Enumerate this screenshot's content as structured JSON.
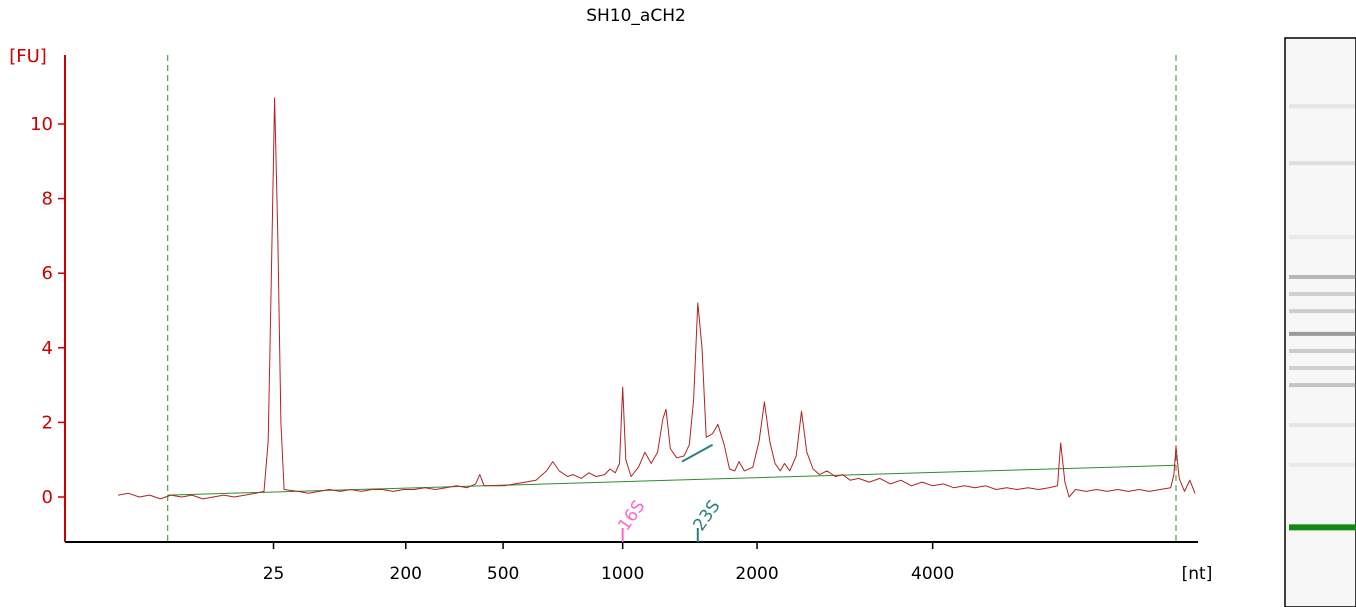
{
  "colors": {
    "axis_y": "#cc0000",
    "axis_x": "#000000",
    "trace": "#b22222",
    "baseline": "#2e8b2e",
    "boundary": "#2e8b2e",
    "marker_16s": "#ff66cc",
    "marker_23s": "#2f7f7f",
    "lane_band": "#777777",
    "lane_marker": "#138813"
  },
  "chart_data": {
    "type": "line",
    "title": "SH10_aCH2",
    "ylabel": "[FU]",
    "xlabel": "[nt]",
    "ylim": [
      -1.2,
      11.8
    ],
    "xlim": [
      0,
      100
    ],
    "yticks": [
      0,
      2,
      4,
      6,
      8,
      10
    ],
    "xticks": [
      {
        "label": "25",
        "x": 14.7
      },
      {
        "label": "200",
        "x": 27.2
      },
      {
        "label": "500",
        "x": 36.4
      },
      {
        "label": "1000",
        "x": 47.7
      },
      {
        "label": "2000",
        "x": 60.4
      },
      {
        "label": "4000",
        "x": 77.0
      }
    ],
    "boundaries": [
      4.7,
      100.0
    ],
    "baseline": [
      [
        4.7,
        0.05
      ],
      [
        100.0,
        0.85
      ]
    ],
    "markers": [
      {
        "label": "16S",
        "x": 47.7,
        "color_key": "marker_16s"
      },
      {
        "label": "23S",
        "x": 54.8,
        "color_key": "marker_23s"
      }
    ],
    "secondary_line": {
      "points": [
        [
          53.3,
          0.95
        ],
        [
          56.2,
          1.4
        ]
      ],
      "color_key": "marker_23s"
    },
    "series": [
      {
        "points": [
          [
            0.0,
            0.05
          ],
          [
            1.0,
            0.1
          ],
          [
            2.0,
            0.0
          ],
          [
            3.0,
            0.05
          ],
          [
            4.0,
            -0.05
          ],
          [
            5.0,
            0.05
          ],
          [
            6.0,
            0.0
          ],
          [
            7.0,
            0.05
          ],
          [
            8.0,
            -0.05
          ],
          [
            9.0,
            0.0
          ],
          [
            10.0,
            0.05
          ],
          [
            11.0,
            0.0
          ],
          [
            12.0,
            0.05
          ],
          [
            13.0,
            0.1
          ],
          [
            13.8,
            0.15
          ],
          [
            14.2,
            1.5
          ],
          [
            14.5,
            6.0
          ],
          [
            14.8,
            10.7
          ],
          [
            15.1,
            7.0
          ],
          [
            15.4,
            2.0
          ],
          [
            15.7,
            0.2
          ],
          [
            17.0,
            0.15
          ],
          [
            18.0,
            0.1
          ],
          [
            19.0,
            0.15
          ],
          [
            20.0,
            0.2
          ],
          [
            21.0,
            0.15
          ],
          [
            22.0,
            0.2
          ],
          [
            23.0,
            0.15
          ],
          [
            24.0,
            0.2
          ],
          [
            25.0,
            0.2
          ],
          [
            26.0,
            0.15
          ],
          [
            27.0,
            0.2
          ],
          [
            28.0,
            0.2
          ],
          [
            29.0,
            0.25
          ],
          [
            30.0,
            0.2
          ],
          [
            31.0,
            0.25
          ],
          [
            32.0,
            0.3
          ],
          [
            33.0,
            0.25
          ],
          [
            33.8,
            0.35
          ],
          [
            34.2,
            0.6
          ],
          [
            34.6,
            0.3
          ],
          [
            35.5,
            0.3
          ],
          [
            36.5,
            0.3
          ],
          [
            37.5,
            0.35
          ],
          [
            38.5,
            0.4
          ],
          [
            39.5,
            0.45
          ],
          [
            40.5,
            0.7
          ],
          [
            41.1,
            0.95
          ],
          [
            41.7,
            0.7
          ],
          [
            42.5,
            0.55
          ],
          [
            43.0,
            0.6
          ],
          [
            43.8,
            0.5
          ],
          [
            44.5,
            0.65
          ],
          [
            45.2,
            0.55
          ],
          [
            46.0,
            0.6
          ],
          [
            46.5,
            0.75
          ],
          [
            47.0,
            0.65
          ],
          [
            47.4,
            0.9
          ],
          [
            47.7,
            2.95
          ],
          [
            48.0,
            1.0
          ],
          [
            48.5,
            0.55
          ],
          [
            49.2,
            0.8
          ],
          [
            49.8,
            1.2
          ],
          [
            50.4,
            0.9
          ],
          [
            51.0,
            1.2
          ],
          [
            51.5,
            2.1
          ],
          [
            51.8,
            2.35
          ],
          [
            52.2,
            1.3
          ],
          [
            52.8,
            1.05
          ],
          [
            53.5,
            1.1
          ],
          [
            54.0,
            1.4
          ],
          [
            54.4,
            2.6
          ],
          [
            54.8,
            5.2
          ],
          [
            55.2,
            4.0
          ],
          [
            55.6,
            1.6
          ],
          [
            56.2,
            1.7
          ],
          [
            56.7,
            1.95
          ],
          [
            57.3,
            1.4
          ],
          [
            57.8,
            0.75
          ],
          [
            58.3,
            0.7
          ],
          [
            58.7,
            0.95
          ],
          [
            59.2,
            0.7
          ],
          [
            60.0,
            0.8
          ],
          [
            60.6,
            1.5
          ],
          [
            61.1,
            2.55
          ],
          [
            61.6,
            1.5
          ],
          [
            62.1,
            0.9
          ],
          [
            62.6,
            0.7
          ],
          [
            63.0,
            0.9
          ],
          [
            63.5,
            0.7
          ],
          [
            64.1,
            1.1
          ],
          [
            64.6,
            2.3
          ],
          [
            65.1,
            1.2
          ],
          [
            65.7,
            0.75
          ],
          [
            66.3,
            0.6
          ],
          [
            67.0,
            0.7
          ],
          [
            67.8,
            0.55
          ],
          [
            68.5,
            0.6
          ],
          [
            69.2,
            0.45
          ],
          [
            70.0,
            0.5
          ],
          [
            71.0,
            0.4
          ],
          [
            72.0,
            0.5
          ],
          [
            73.0,
            0.35
          ],
          [
            74.0,
            0.45
          ],
          [
            75.0,
            0.3
          ],
          [
            76.0,
            0.4
          ],
          [
            77.0,
            0.3
          ],
          [
            78.0,
            0.35
          ],
          [
            79.0,
            0.25
          ],
          [
            80.0,
            0.3
          ],
          [
            81.0,
            0.25
          ],
          [
            82.0,
            0.3
          ],
          [
            83.0,
            0.2
          ],
          [
            84.0,
            0.25
          ],
          [
            85.0,
            0.2
          ],
          [
            86.0,
            0.25
          ],
          [
            87.0,
            0.2
          ],
          [
            88.0,
            0.25
          ],
          [
            88.8,
            0.3
          ],
          [
            89.1,
            1.45
          ],
          [
            89.5,
            0.4
          ],
          [
            89.9,
            0.0
          ],
          [
            90.5,
            0.2
          ],
          [
            91.5,
            0.15
          ],
          [
            92.5,
            0.2
          ],
          [
            93.5,
            0.15
          ],
          [
            94.5,
            0.2
          ],
          [
            95.5,
            0.15
          ],
          [
            96.5,
            0.2
          ],
          [
            97.5,
            0.15
          ],
          [
            98.5,
            0.2
          ],
          [
            99.5,
            0.25
          ],
          [
            99.8,
            0.6
          ],
          [
            100.0,
            1.35
          ],
          [
            100.3,
            0.5
          ],
          [
            100.8,
            0.15
          ],
          [
            101.3,
            0.45
          ],
          [
            101.8,
            0.1
          ]
        ]
      }
    ]
  },
  "gel_lane": {
    "bands": [
      {
        "y": 0.12,
        "intensity": 0.14
      },
      {
        "y": 0.22,
        "intensity": 0.2
      },
      {
        "y": 0.35,
        "intensity": 0.1
      },
      {
        "y": 0.42,
        "intensity": 0.5
      },
      {
        "y": 0.45,
        "intensity": 0.3
      },
      {
        "y": 0.48,
        "intensity": 0.32
      },
      {
        "y": 0.52,
        "intensity": 0.72
      },
      {
        "y": 0.55,
        "intensity": 0.35
      },
      {
        "y": 0.58,
        "intensity": 0.3
      },
      {
        "y": 0.61,
        "intensity": 0.4
      },
      {
        "y": 0.68,
        "intensity": 0.14
      },
      {
        "y": 0.75,
        "intensity": 0.1
      }
    ],
    "marker_y": 0.86
  }
}
